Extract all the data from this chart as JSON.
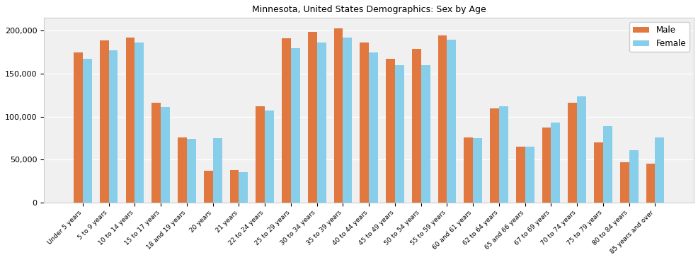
{
  "title": "Minnesota, United States Demographics: Sex by Age",
  "categories": [
    "Under 5 years",
    "5 to 9 years",
    "10 to 14 years",
    "15 to 17 years",
    "18 and 19 years",
    "20 years",
    "21 years",
    "22 to 24 years",
    "25 to 29 years",
    "30 to 34 years",
    "35 to 39 years",
    "40 to 44 years",
    "45 to 49 years",
    "50 to 54 years",
    "55 to 59 years",
    "60 and 61 years",
    "62 to 64 years",
    "65 and 66 years",
    "67 to 69 years",
    "70 to 74 years",
    "75 to 79 years",
    "80 to 84 years",
    "85 years and over"
  ],
  "male": [
    175000,
    189000,
    192000,
    116000,
    76000,
    37000,
    38000,
    112000,
    191000,
    199000,
    203000,
    186000,
    167000,
    179000,
    195000,
    76000,
    110000,
    65000,
    87000,
    116000,
    70000,
    47000,
    45000
  ],
  "female": [
    167000,
    177000,
    186000,
    111000,
    74000,
    75000,
    35000,
    107000,
    180000,
    186000,
    192000,
    175000,
    160000,
    160000,
    190000,
    75000,
    112000,
    65000,
    93000,
    124000,
    89000,
    61000,
    76000
  ],
  "male_color": "#E07840",
  "female_color": "#87CEEB",
  "ylim": [
    0,
    215000
  ],
  "yticks": [
    0,
    50000,
    100000,
    150000,
    200000
  ],
  "ytick_labels": [
    "0",
    "50,000",
    "100,000",
    "150,000",
    "200,000"
  ],
  "bar_width": 0.35,
  "legend_labels": [
    "Male",
    "Female"
  ],
  "bg_color": "#f0f0f0"
}
